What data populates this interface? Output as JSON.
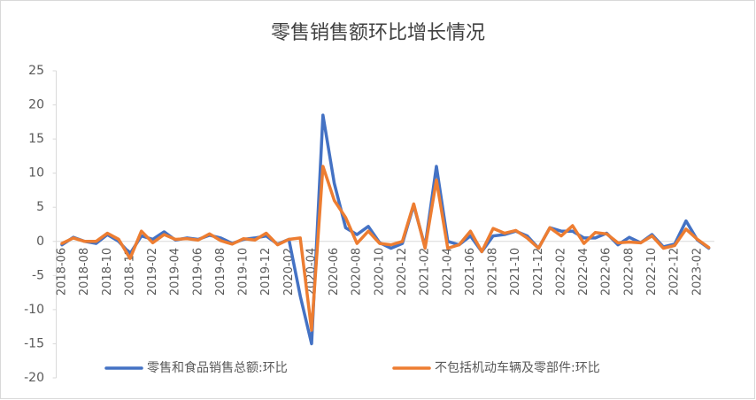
{
  "chart_data": {
    "type": "line",
    "title": "零售销售额环比增长情况",
    "categories": [
      "2018-06",
      null,
      "2018-08",
      null,
      "2018-10",
      null,
      "2018-12",
      null,
      "2019-02",
      null,
      "2019-04",
      null,
      "2019-06",
      null,
      "2019-08",
      null,
      "2019-10",
      null,
      "2019-12",
      null,
      "2020-02",
      null,
      "2020-04",
      null,
      "2020-06",
      null,
      "2020-08",
      null,
      "2020-10",
      null,
      "2020-12",
      null,
      "2021-02",
      null,
      "2021-04",
      null,
      "2021-06",
      null,
      "2021-08",
      null,
      "2021-10",
      null,
      "2021-12",
      null,
      "2022-02",
      null,
      "2022-04",
      null,
      "2022-06",
      null,
      "2022-08",
      null,
      "2022-10",
      null,
      "2022-12",
      null,
      "2023-02",
      null
    ],
    "series": [
      {
        "name": "零售和食品销售总额:环比",
        "color": "#4472c4",
        "values": [
          -0.5,
          0.6,
          0,
          -0.3,
          1,
          0,
          -1.8,
          0.8,
          0.3,
          1.4,
          0.2,
          0.5,
          0.3,
          0.9,
          0.5,
          -0.3,
          0.3,
          0.5,
          0.8,
          -0.4,
          0.3,
          -8,
          -15,
          18.5,
          8.5,
          2,
          1,
          2.2,
          -0.2,
          -1,
          -0.3,
          5.3,
          -0.8,
          11,
          0,
          -0.5,
          0.8,
          -1.5,
          0.8,
          1,
          1.5,
          0.8,
          -1,
          2,
          1.5,
          1.5,
          0.5,
          0.5,
          1.2,
          -0.5,
          0.6,
          -0.2,
          1,
          -0.8,
          -0.4,
          3,
          0.2,
          -1
        ]
      },
      {
        "name": "不包括机动车辆及零部件:环比",
        "color": "#ed7d31",
        "values": [
          -0.3,
          0.5,
          0,
          0,
          1.2,
          0.3,
          -2.5,
          1.5,
          -0.2,
          1,
          0.3,
          0.4,
          0.2,
          1.1,
          0.1,
          -0.4,
          0.4,
          0.2,
          1.2,
          -0.5,
          0.3,
          0.5,
          -13,
          11,
          6,
          3.5,
          -0.3,
          1.5,
          -0.3,
          -0.5,
          0,
          5.5,
          -1,
          9,
          -1,
          -0.5,
          1.5,
          -1.5,
          1.9,
          1.2,
          1.6,
          0.5,
          -1,
          2,
          0.8,
          2.3,
          -0.3,
          1.3,
          1.1,
          -0.2,
          -0.1,
          -0.2,
          0.8,
          -1,
          -0.6,
          1.8,
          0.3,
          -0.9
        ]
      }
    ],
    "ylim": [
      -20,
      25
    ],
    "yticks": [
      -20,
      -15,
      -10,
      -5,
      0,
      5,
      10,
      15,
      20,
      25
    ],
    "grid": false,
    "legend": "bottom"
  }
}
